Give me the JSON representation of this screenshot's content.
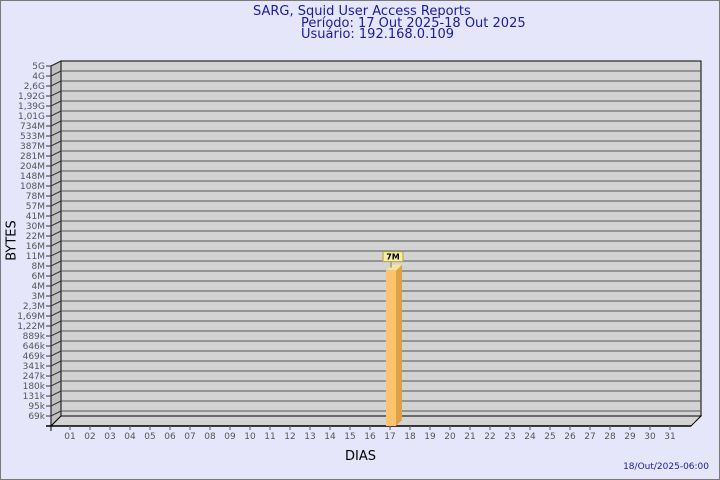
{
  "title": "SARG, Squid User Access Reports",
  "period": "Período: 17 Out 2025-18 Out 2025",
  "user": "Usuário: 192.168.0.109",
  "footer": "18/Out/2025-06:00",
  "colors": {
    "bar": "#fbc46a",
    "bar_side": "#e0a048",
    "wall": "#d3d3d3",
    "title": "#1a1aa0"
  },
  "chart_data": {
    "type": "bar",
    "xlabel": "DIAS",
    "ylabel": "BYTES",
    "y_scale": "log",
    "y_ticks": [
      "5G",
      "4G",
      "2,6G",
      "1,92G",
      "1,39G",
      "1,01G",
      "734M",
      "533M",
      "387M",
      "281M",
      "204M",
      "148M",
      "108M",
      "78M",
      "57M",
      "41M",
      "30M",
      "22M",
      "16M",
      "11M",
      "8M",
      "6M",
      "4M",
      "3M",
      "2,3M",
      "1,69M",
      "1,22M",
      "889k",
      "646k",
      "469k",
      "341k",
      "247k",
      "180k",
      "131k",
      "95k",
      "69k"
    ],
    "categories": [
      "01",
      "02",
      "03",
      "04",
      "05",
      "06",
      "07",
      "08",
      "09",
      "10",
      "11",
      "12",
      "13",
      "14",
      "15",
      "16",
      "17",
      "18",
      "19",
      "20",
      "21",
      "22",
      "23",
      "24",
      "25",
      "26",
      "27",
      "28",
      "29",
      "30",
      "31"
    ],
    "bars": [
      {
        "category": "17",
        "value": "7M"
      }
    ],
    "grid": true
  }
}
